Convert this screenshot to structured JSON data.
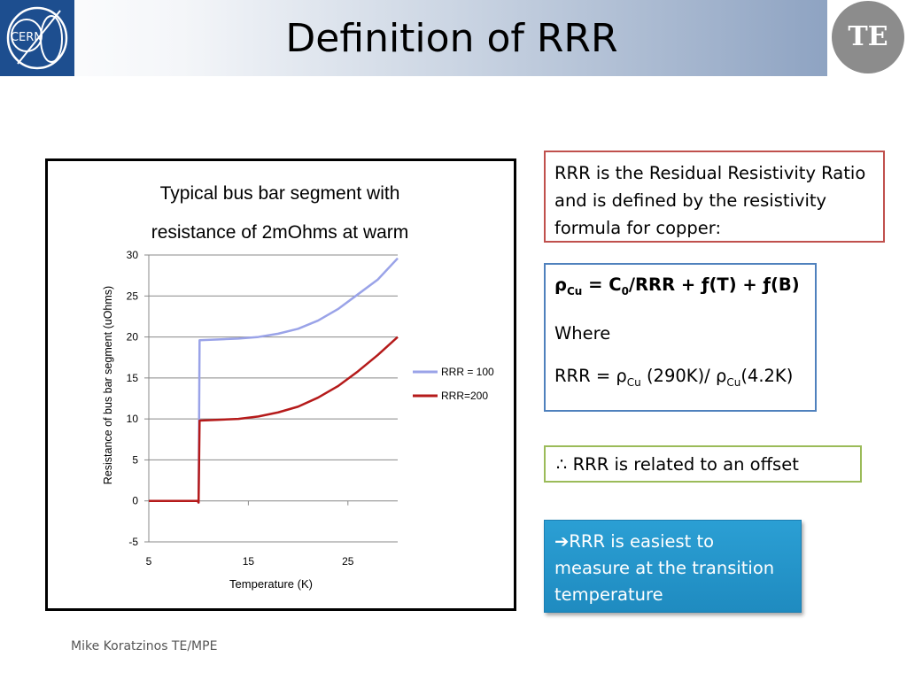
{
  "slide": {
    "title": "Definition of RRR",
    "footer": "Mike Koratzinos TE/MPE"
  },
  "logos": {
    "cern": "CERN",
    "te": "TE"
  },
  "boxes": {
    "definition": "RRR is the Residual Resistivity Ratio and is defined by the resistivity formula for copper:",
    "formula": {
      "rho": "ρ",
      "rho_sub": "Cu",
      "eq1": " = C",
      "c_sub": "0",
      "eq2": "/RRR + ƒ(T) + ƒ(B)",
      "where": "Where",
      "rrr_prefix": "RRR = ρ",
      "rrr_sub1": "Cu",
      "rrr_mid": " (290K)/ ρ",
      "rrr_sub2": "Cu",
      "rrr_end": "(4.2K)"
    },
    "offset": "∴ RRR is related to an offset",
    "transition_arrow": "➔",
    "transition": "RRR is easiest to measure at the transition temperature"
  },
  "colors": {
    "series_rrr100": "#9aa3e8",
    "series_rrr200": "#b51a1a",
    "definition_border": "#c0504d",
    "formula_border": "#4f81bd",
    "offset_border": "#9bbb59",
    "transition_bg": "#2b9fd4"
  },
  "chart_data": {
    "type": "line",
    "title_lines": [
      "Typical bus bar segment with",
      "resistance of 2mOhms at warm"
    ],
    "xlabel": "Temperature (K)",
    "ylabel": "Resistance of bus bar segment (uOhms)",
    "xlim": [
      5,
      30
    ],
    "ylim": [
      -5,
      30
    ],
    "xticks": [
      5,
      15,
      25
    ],
    "yticks": [
      -5,
      0,
      5,
      10,
      15,
      20,
      25,
      30
    ],
    "grid": "horizontal",
    "legend_position": "right",
    "series": [
      {
        "name": "RRR = 100",
        "points": [
          [
            5,
            0
          ],
          [
            9.9,
            0
          ],
          [
            10,
            -0.2
          ],
          [
            10.1,
            19.6
          ],
          [
            12,
            19.7
          ],
          [
            14,
            19.8
          ],
          [
            16,
            20.0
          ],
          [
            18,
            20.4
          ],
          [
            20,
            21.0
          ],
          [
            22,
            22.0
          ],
          [
            24,
            23.4
          ],
          [
            26,
            25.2
          ],
          [
            28,
            27.0
          ],
          [
            30,
            29.6
          ]
        ]
      },
      {
        "name": "RRR=200",
        "points": [
          [
            5,
            0
          ],
          [
            9.9,
            0
          ],
          [
            10,
            -0.2
          ],
          [
            10.1,
            9.8
          ],
          [
            12,
            9.9
          ],
          [
            14,
            10.0
          ],
          [
            16,
            10.3
          ],
          [
            18,
            10.8
          ],
          [
            20,
            11.5
          ],
          [
            22,
            12.6
          ],
          [
            24,
            14.0
          ],
          [
            26,
            15.8
          ],
          [
            28,
            17.8
          ],
          [
            30,
            20.0
          ]
        ]
      }
    ]
  }
}
